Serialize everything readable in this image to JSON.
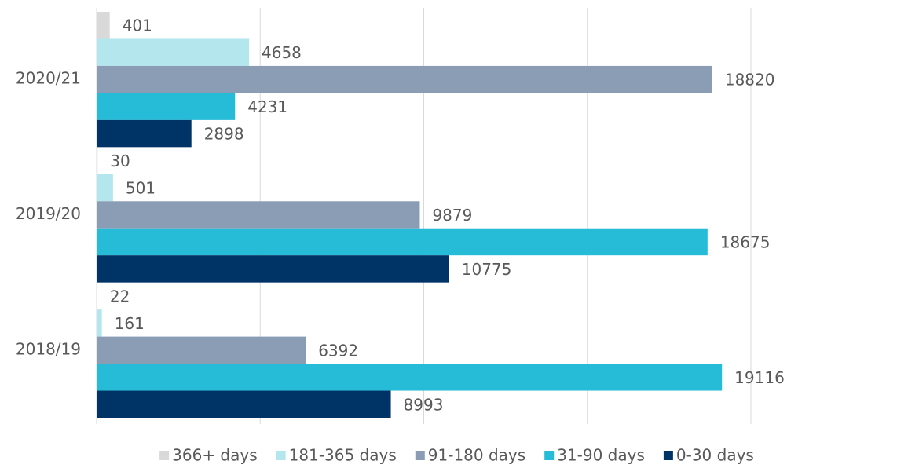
{
  "chart_data": {
    "type": "bar",
    "orientation": "horizontal",
    "categories": [
      "2020/21",
      "2019/20",
      "2018/19"
    ],
    "series": [
      {
        "name": "366+ days",
        "color": "#d9d9d9",
        "values": [
          401,
          30,
          22
        ]
      },
      {
        "name": "181-365 days",
        "color": "#b3e6ed",
        "values": [
          4658,
          501,
          161
        ]
      },
      {
        "name": "91-180 days",
        "color": "#8b9db5",
        "values": [
          18820,
          9879,
          6392
        ]
      },
      {
        "name": "31-90 days",
        "color": "#26bcd8",
        "values": [
          4231,
          18675,
          19116
        ]
      },
      {
        "name": "0-30 days",
        "color": "#003366",
        "values": [
          2898,
          10775,
          8993
        ]
      }
    ],
    "xlim": [
      0,
      20000
    ],
    "xticks": [
      0,
      5000,
      10000,
      15000,
      20000
    ],
    "grid": true,
    "legend": "bottom"
  }
}
